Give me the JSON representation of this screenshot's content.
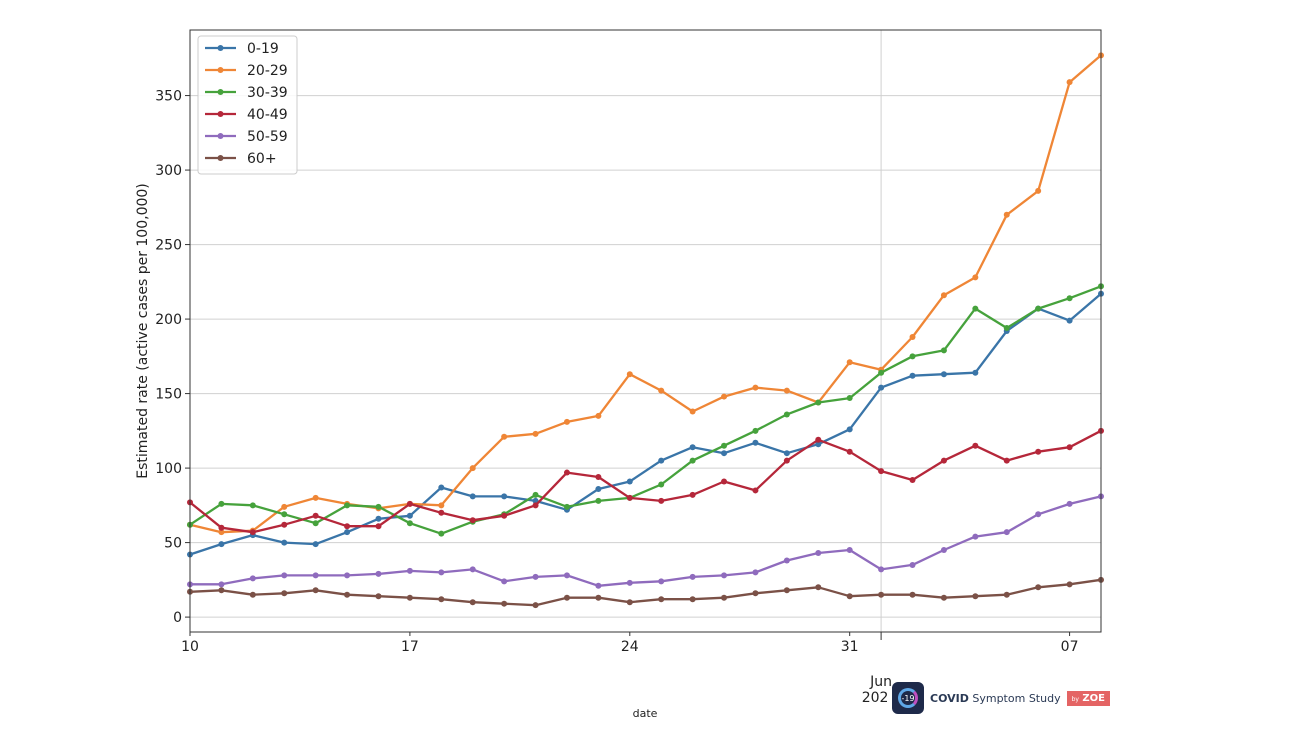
{
  "chart_data": {
    "type": "line",
    "title": "",
    "xlabel": "date",
    "ylabel": "Estimated rate (active cases per 100,000)",
    "x": [
      "May 10",
      "May 11",
      "May 12",
      "May 13",
      "May 14",
      "May 15",
      "May 16",
      "May 17",
      "May 18",
      "May 19",
      "May 20",
      "May 21",
      "May 22",
      "May 23",
      "May 24",
      "May 25",
      "May 26",
      "May 27",
      "May 28",
      "May 29",
      "May 30",
      "May 31",
      "Jun 01",
      "Jun 02",
      "Jun 03",
      "Jun 04",
      "Jun 05",
      "Jun 06",
      "Jun 07",
      "Jun 08"
    ],
    "xlim": [
      "May 10",
      "Jun 08"
    ],
    "ylim": [
      -10,
      394
    ],
    "x_ticks": [
      {
        "index": 0,
        "label": "10"
      },
      {
        "index": 7,
        "label": "17"
      },
      {
        "index": 14,
        "label": "24"
      },
      {
        "index": 21,
        "label": "31"
      },
      {
        "index": 28,
        "label": "07"
      }
    ],
    "x_major_tick": {
      "index": 22,
      "label_line1": "Jun",
      "label_line2": "202"
    },
    "y_ticks": [
      0,
      50,
      100,
      150,
      200,
      250,
      300,
      350
    ],
    "grid": {
      "horizontal": true,
      "vertical_major_only": true
    },
    "legend_position": "top-left",
    "marker": "circle",
    "series": [
      {
        "name": "0-19",
        "color": "#3a75a8",
        "values": [
          42,
          49,
          55,
          50,
          49,
          57,
          66,
          68,
          87,
          81,
          81,
          78,
          72,
          86,
          91,
          105,
          114,
          110,
          117,
          110,
          116,
          126,
          154,
          162,
          163,
          164,
          192,
          207,
          199,
          217
        ]
      },
      {
        "name": "20-29",
        "color": "#ef8636",
        "values": [
          62,
          57,
          58,
          74,
          80,
          76,
          73,
          76,
          75,
          100,
          121,
          123,
          131,
          135,
          163,
          152,
          138,
          148,
          154,
          152,
          144,
          171,
          166,
          188,
          216,
          228,
          270,
          286,
          359,
          377
        ]
      },
      {
        "name": "30-39",
        "color": "#46a23c",
        "values": [
          62,
          76,
          75,
          69,
          63,
          75,
          74,
          63,
          56,
          64,
          69,
          82,
          74,
          78,
          80,
          89,
          105,
          115,
          125,
          136,
          144,
          147,
          164,
          175,
          179,
          207,
          194,
          207,
          214,
          222
        ]
      },
      {
        "name": "40-49",
        "color": "#b5273a",
        "values": [
          77,
          60,
          57,
          62,
          68,
          61,
          61,
          76,
          70,
          65,
          68,
          75,
          97,
          94,
          80,
          78,
          82,
          91,
          85,
          105,
          119,
          111,
          98,
          92,
          105,
          115,
          105,
          111,
          114,
          125
        ]
      },
      {
        "name": "50-59",
        "color": "#8f6bbd",
        "values": [
          22,
          22,
          26,
          28,
          28,
          28,
          29,
          31,
          30,
          32,
          24,
          27,
          28,
          21,
          23,
          24,
          27,
          28,
          30,
          38,
          43,
          45,
          32,
          35,
          45,
          54,
          57,
          69,
          76,
          81
        ]
      },
      {
        "name": "60+",
        "color": "#7b5147",
        "values": [
          17,
          18,
          15,
          16,
          18,
          15,
          14,
          13,
          12,
          10,
          9,
          8,
          13,
          13,
          10,
          12,
          12,
          13,
          16,
          18,
          20,
          14,
          15,
          15,
          13,
          14,
          15,
          20,
          22,
          25
        ]
      }
    ]
  },
  "logo": {
    "badge": "-19",
    "name_bold": "COVID",
    "name_rest": " Symptom Study",
    "by": "by",
    "brand": "ZOE"
  }
}
